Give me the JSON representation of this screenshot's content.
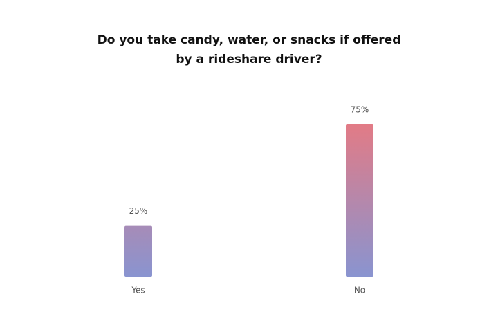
{
  "chart_data": {
    "type": "bar",
    "title": "Do you take candy, water, or snacks if offered by a rideshare driver?",
    "categories": [
      "Yes",
      "No"
    ],
    "values": [
      25,
      75
    ],
    "value_labels": [
      "25%",
      "75%"
    ],
    "gradient": [
      "#e27b86",
      "#8994d0"
    ]
  }
}
